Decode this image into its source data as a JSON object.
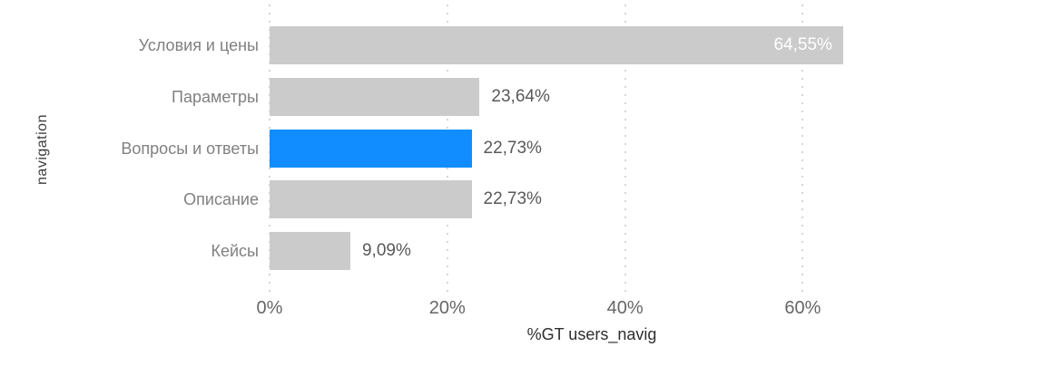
{
  "chart_data": {
    "type": "bar",
    "orientation": "horizontal",
    "title": "",
    "xlabel": "%GT users_navig",
    "ylabel": "navigation",
    "categories": [
      "Условия и цены",
      "Параметры",
      "Вопросы и ответы",
      "Описание",
      "Кейсы"
    ],
    "values": [
      64.55,
      23.64,
      22.73,
      22.73,
      9.09
    ],
    "value_labels": [
      "64,55%",
      "23,64%",
      "22,73%",
      "22,73%",
      "9,09%"
    ],
    "highlight_index": 2,
    "label_inside_index": 0,
    "x_ticks": [
      {
        "label": "0%",
        "value": 0
      },
      {
        "label": "20%",
        "value": 20
      },
      {
        "label": "40%",
        "value": 40
      },
      {
        "label": "60%",
        "value": 60
      }
    ],
    "xlim": [
      0,
      70
    ],
    "grid": "dotted-vertical",
    "legend": "none",
    "colors": {
      "bar_default": "#cbcbcb",
      "bar_highlight": "#118dff",
      "gridline": "#d6d6d6",
      "value_label_inside": "#ffffff",
      "value_label_outside": "#595959"
    }
  }
}
